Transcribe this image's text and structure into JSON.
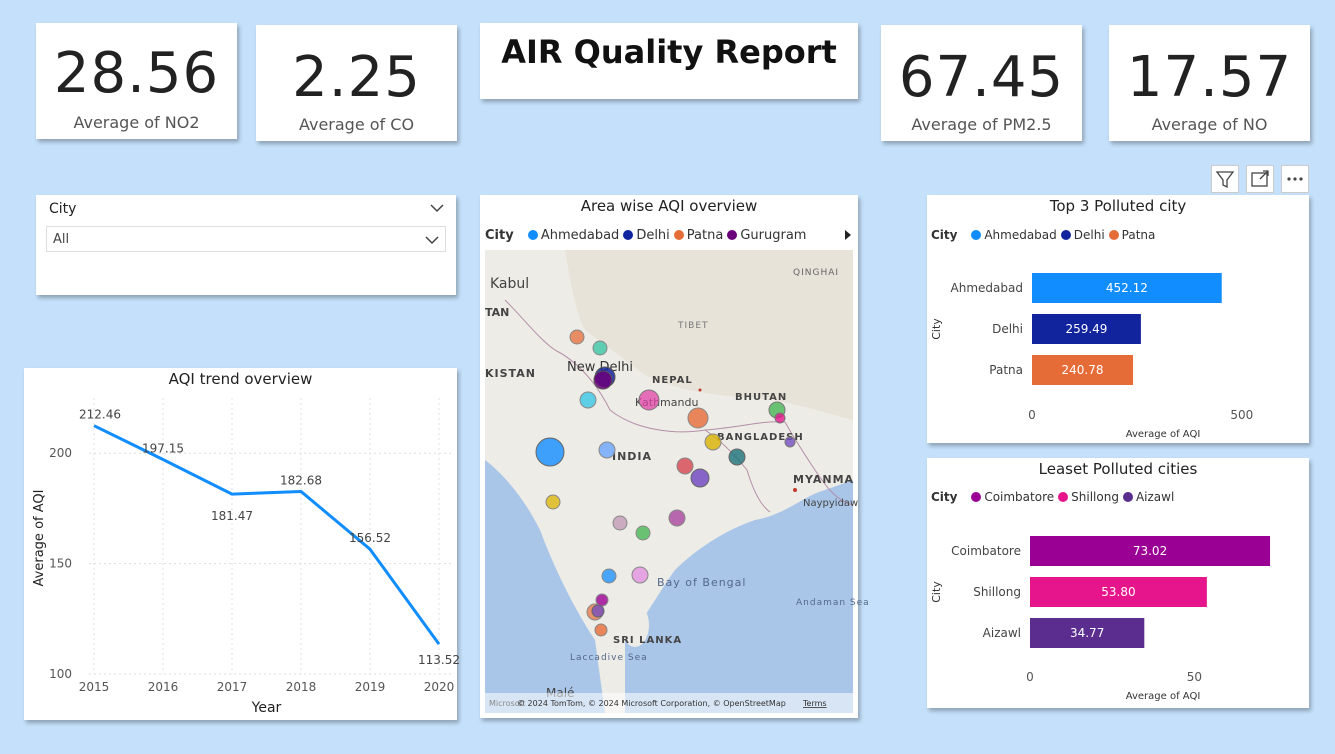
{
  "kpis": [
    {
      "value": "28.56",
      "label": "Average of NO2"
    },
    {
      "value": "2.25",
      "label": "Average of CO"
    },
    {
      "value": "67.45",
      "label": "Average of PM2.5"
    },
    {
      "value": "17.57",
      "label": "Average of NO"
    }
  ],
  "report_title": "AIR Quality Report",
  "slicer": {
    "label": "City",
    "value": "All"
  },
  "toolbar": {
    "filter_icon": "filter-icon",
    "focus_icon": "focus-mode-icon",
    "more_icon": "more-options-icon"
  },
  "map": {
    "title": "Area wise AQI overview",
    "legend_title": "City",
    "legend": [
      {
        "name": "Ahmedabad",
        "color": "#118dff"
      },
      {
        "name": "Delhi",
        "color": "#12239e"
      },
      {
        "name": "Patna",
        "color": "#e66c37"
      },
      {
        "name": "Gurugram",
        "color": "#6b007b"
      }
    ],
    "labels": [
      "Kabul",
      "TAN",
      "KISTAN",
      "QINGHAI",
      "TIBET",
      "New Delhi",
      "NEPAL",
      "Kathmandu",
      "BHUTAN",
      "BANGLADESH",
      "INDIA",
      "MYANMA",
      "Naypyidaw",
      "Bay of Bengal",
      "Andaman Sea",
      "SRI LANKA",
      "Laccadive Sea",
      "Malé"
    ],
    "attribution": "© 2024 TomTom, © 2024 Microsoft Corporation, © OpenStreetMap",
    "terms": "Terms",
    "logo": "Microsoft"
  },
  "trend": {
    "title": "AQI trend overview",
    "chart_data": {
      "type": "line",
      "x": [
        "2015",
        "2016",
        "2017",
        "2018",
        "2019",
        "2020"
      ],
      "values": [
        212.46,
        197.15,
        181.47,
        182.68,
        156.52,
        113.52
      ],
      "data_labels": [
        "212.46",
        "197.15",
        "181.47",
        "182.68",
        "156.52",
        "113.52"
      ],
      "xlabel": "Year",
      "ylabel": "Average of AQI",
      "yticks": [
        "100",
        "150",
        "200"
      ],
      "ylim": [
        100,
        225
      ],
      "color": "#118dff",
      "grid": true
    }
  },
  "top3": {
    "title": "Top 3 Polluted city",
    "legend_title": "City",
    "chart_data": {
      "type": "bar",
      "orientation": "horizontal",
      "categories": [
        "Ahmedabad",
        "Delhi",
        "Patna"
      ],
      "values": [
        452.12,
        259.49,
        240.78
      ],
      "data_labels": [
        "452.12",
        "259.49",
        "240.78"
      ],
      "colors": [
        "#118dff",
        "#12239e",
        "#e66c37"
      ],
      "xlabel": "Average of AQI",
      "ylabel": "City",
      "xticks": [
        "0",
        "500"
      ],
      "xlim": [
        0,
        560
      ]
    }
  },
  "least": {
    "title": "Leaset Polluted cities",
    "legend_title": "City",
    "chart_data": {
      "type": "bar",
      "orientation": "horizontal",
      "categories": [
        "Coimbatore",
        "Shillong",
        "Aizawl"
      ],
      "values": [
        73.02,
        53.8,
        34.77
      ],
      "data_labels": [
        "73.02",
        "53.80",
        "34.77"
      ],
      "colors": [
        "#9b0095",
        "#e6158c",
        "#5a2d8e"
      ],
      "xlabel": "Average of AQI",
      "ylabel": "City",
      "xticks": [
        "0",
        "50"
      ],
      "xlim": [
        0,
        80
      ]
    }
  }
}
